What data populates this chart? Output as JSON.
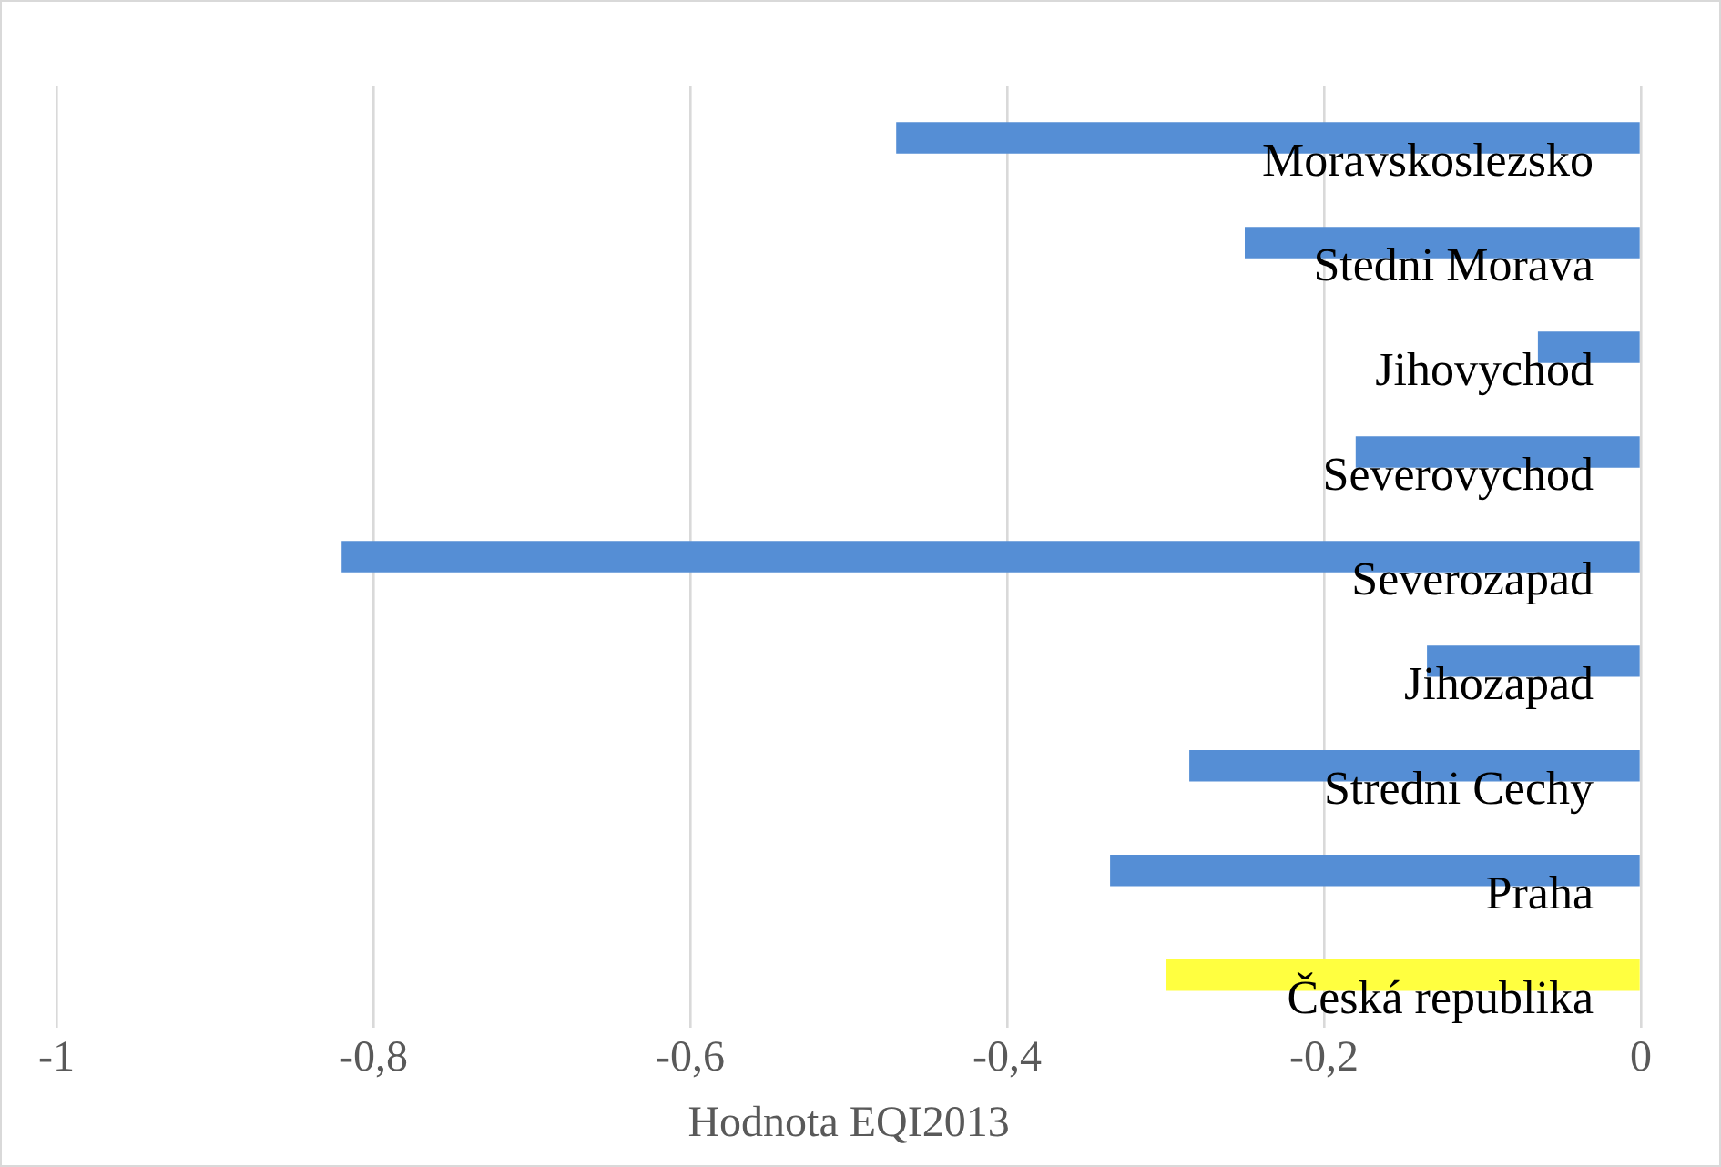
{
  "chart_data": {
    "type": "bar",
    "orientation": "horizontal",
    "xlabel": "Hodnota EQI2013",
    "categories": [
      "Moravskoslezsko",
      "Stedni Morava",
      "Jihovychod",
      "Severovychod",
      "Severozapad",
      "Jihozapad",
      "Stredni Cechy",
      "Praha",
      "Česká republika"
    ],
    "values": [
      -0.47,
      -0.25,
      -0.065,
      -0.18,
      -0.82,
      -0.135,
      -0.285,
      -0.335,
      -0.3
    ],
    "colors": [
      "#558ed5",
      "#558ed5",
      "#558ed5",
      "#558ed5",
      "#558ed5",
      "#558ed5",
      "#558ed5",
      "#558ed5",
      "#ffff40"
    ],
    "xlim": [
      -1,
      0
    ],
    "xticks": [
      {
        "value": -1,
        "label": "-1"
      },
      {
        "value": -0.8,
        "label": "-0,8"
      },
      {
        "value": -0.6,
        "label": "-0,6"
      },
      {
        "value": -0.4,
        "label": "-0,4"
      },
      {
        "value": -0.2,
        "label": "-0,2"
      },
      {
        "value": 0,
        "label": "0"
      }
    ],
    "grid": "x",
    "legend": false
  }
}
